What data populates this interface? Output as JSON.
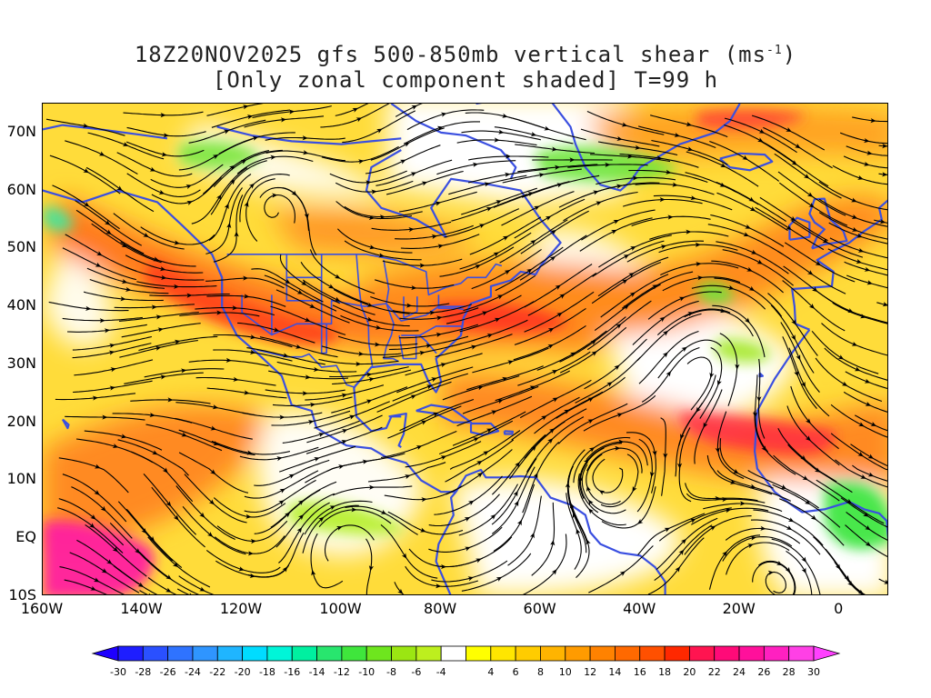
{
  "title": {
    "line1_prefix": "18Z20NOV2025 gfs 500-850mb vertical shear (ms",
    "line1_sup": "-1",
    "line1_suffix": ")",
    "line2": "[Only zonal component shaded] T=99 h"
  },
  "map": {
    "lon_range": [
      -160,
      10
    ],
    "lat_range": [
      -10,
      75
    ],
    "y_ticks": [
      {
        "label": "70N",
        "lat": 70
      },
      {
        "label": "60N",
        "lat": 60
      },
      {
        "label": "50N",
        "lat": 50
      },
      {
        "label": "40N",
        "lat": 40
      },
      {
        "label": "30N",
        "lat": 30
      },
      {
        "label": "20N",
        "lat": 20
      },
      {
        "label": "10N",
        "lat": 10
      },
      {
        "label": "EQ",
        "lat": 0
      },
      {
        "label": "10S",
        "lat": -10
      }
    ],
    "x_ticks": [
      {
        "label": "160W",
        "lon": -160
      },
      {
        "label": "140W",
        "lon": -140
      },
      {
        "label": "120W",
        "lon": -120
      },
      {
        "label": "100W",
        "lon": -100
      },
      {
        "label": "80W",
        "lon": -80
      },
      {
        "label": "60W",
        "lon": -60
      },
      {
        "label": "40W",
        "lon": -40
      },
      {
        "label": "20W",
        "lon": -20
      },
      {
        "label": "0",
        "lon": 0
      }
    ],
    "coastline_color": "#3a4fe0",
    "streamline_color": "#000000"
  },
  "colorbar": {
    "labels": [
      "-30",
      "-28",
      "-26",
      "-24",
      "-22",
      "-20",
      "-18",
      "-16",
      "-14",
      "-12",
      "-10",
      "-8",
      "-6",
      "-4",
      "4",
      "6",
      "8",
      "10",
      "12",
      "14",
      "16",
      "18",
      "20",
      "22",
      "24",
      "26",
      "28",
      "30"
    ],
    "colors": [
      "#1e1eff",
      "#2a50ff",
      "#2f73ff",
      "#2f95ff",
      "#1fb5ff",
      "#00dcff",
      "#00f5d8",
      "#00f0a0",
      "#28e66e",
      "#3fe63c",
      "#6ee61e",
      "#9be612",
      "#bdef1e",
      "#ffffff",
      "#ffff00",
      "#ffe600",
      "#ffcc00",
      "#ffb400",
      "#ff9b00",
      "#ff8200",
      "#ff6900",
      "#ff5000",
      "#ff2800",
      "#ff1450",
      "#ff0a78",
      "#ff109b",
      "#ff20c0",
      "#ff40e6"
    ],
    "under_color": "#1e00ff",
    "over_color": "#ff40ff"
  }
}
